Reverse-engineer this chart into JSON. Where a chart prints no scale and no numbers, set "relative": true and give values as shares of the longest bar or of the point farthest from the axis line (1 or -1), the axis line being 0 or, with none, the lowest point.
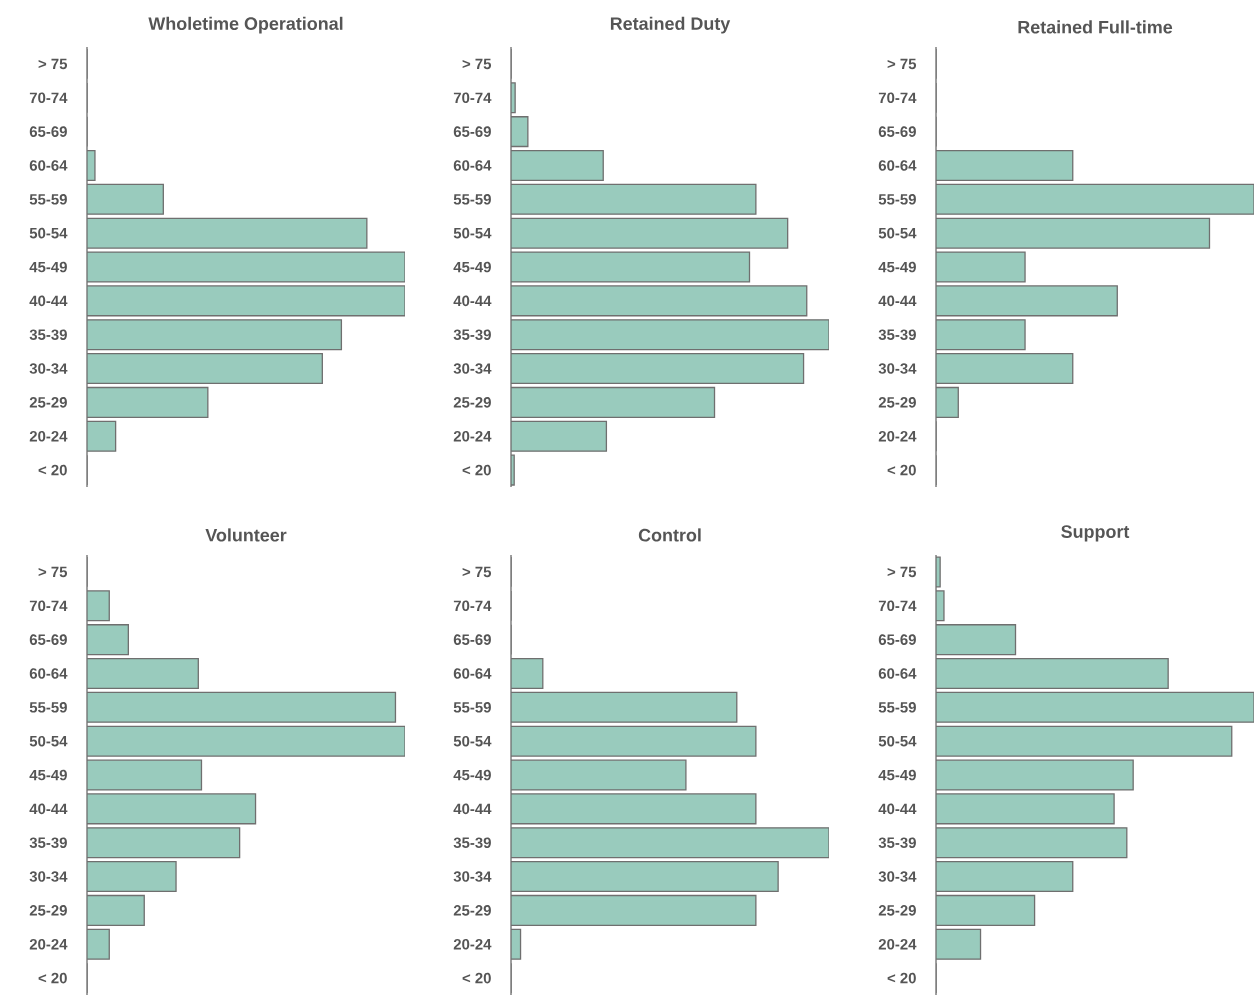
{
  "chart_data": [
    {
      "type": "bar",
      "orientation": "horizontal",
      "relative": true,
      "title": "Wholetime Operational",
      "color": "#99cbbd",
      "categories": [
        "> 75",
        "70-74",
        "65-69",
        "60-64",
        "55-59",
        "50-54",
        "45-49",
        "40-44",
        "35-39",
        "30-34",
        "25-29",
        "20-24",
        "< 20"
      ],
      "values": [
        0,
        0,
        0,
        0.025,
        0.24,
        0.88,
        1,
        1,
        0.8,
        0.74,
        0.38,
        0.09,
        0
      ]
    },
    {
      "type": "bar",
      "orientation": "horizontal",
      "relative": true,
      "title": "Retained Duty",
      "color": "#99cbbd",
      "categories": [
        "> 75",
        "70-74",
        "65-69",
        "60-64",
        "55-59",
        "50-54",
        "45-49",
        "40-44",
        "35-39",
        "30-34",
        "25-29",
        "20-24",
        "< 20"
      ],
      "values": [
        0,
        0.013,
        0.053,
        0.29,
        0.77,
        0.87,
        0.75,
        0.93,
        1,
        0.92,
        0.64,
        0.3,
        0.01
      ]
    },
    {
      "type": "bar",
      "orientation": "horizontal",
      "relative": true,
      "title": "Retained Full-time",
      "color": "#99cbbd",
      "categories": [
        "> 75",
        "70-74",
        "65-69",
        "60-64",
        "55-59",
        "50-54",
        "45-49",
        "40-44",
        "35-39",
        "30-34",
        "25-29",
        "20-24",
        "< 20"
      ],
      "values": [
        0,
        0,
        0,
        0.43,
        1,
        0.86,
        0.28,
        0.57,
        0.28,
        0.43,
        0.07,
        0,
        0
      ]
    },
    {
      "type": "bar",
      "orientation": "horizontal",
      "relative": true,
      "title": "Volunteer",
      "color": "#99cbbd",
      "categories": [
        "> 75",
        "70-74",
        "65-69",
        "60-64",
        "55-59",
        "50-54",
        "45-49",
        "40-44",
        "35-39",
        "30-34",
        "25-29",
        "20-24",
        "< 20"
      ],
      "values": [
        0,
        0.07,
        0.13,
        0.35,
        0.97,
        1,
        0.36,
        0.53,
        0.48,
        0.28,
        0.18,
        0.07,
        0
      ]
    },
    {
      "type": "bar",
      "orientation": "horizontal",
      "relative": true,
      "title": "Control",
      "color": "#99cbbd",
      "categories": [
        "> 75",
        "70-74",
        "65-69",
        "60-64",
        "55-59",
        "50-54",
        "45-49",
        "40-44",
        "35-39",
        "30-34",
        "25-29",
        "20-24",
        "< 20"
      ],
      "values": [
        0,
        0,
        0,
        0.1,
        0.71,
        0.77,
        0.55,
        0.77,
        1,
        0.84,
        0.77,
        0.03,
        0
      ]
    },
    {
      "type": "bar",
      "orientation": "horizontal",
      "relative": true,
      "title": "Support",
      "color": "#99cbbd",
      "categories": [
        "> 75",
        "70-74",
        "65-69",
        "60-64",
        "55-59",
        "50-54",
        "45-49",
        "40-44",
        "35-39",
        "30-34",
        "25-29",
        "20-24",
        "< 20"
      ],
      "values": [
        0.013,
        0.025,
        0.25,
        0.73,
        1,
        0.93,
        0.62,
        0.56,
        0.6,
        0.43,
        0.31,
        0.14,
        0
      ]
    }
  ]
}
